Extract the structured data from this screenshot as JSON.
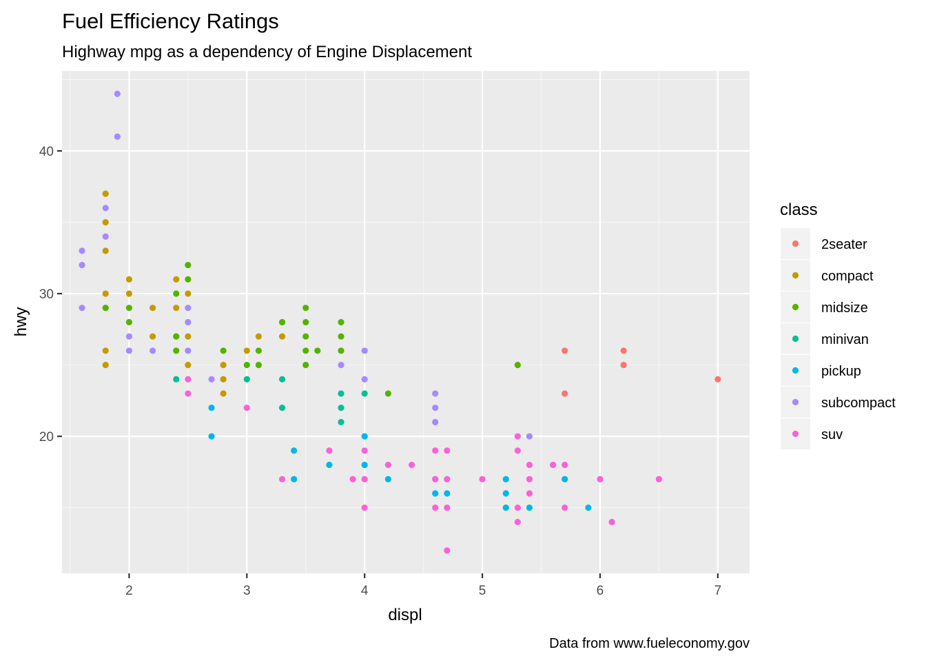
{
  "chart_data": {
    "type": "scatter",
    "title": "Fuel Efficiency Ratings",
    "subtitle": "Highway mpg as a dependency of Engine Displacement",
    "caption": "Data from www.fueleconomy.gov",
    "xlabel": "displ",
    "ylabel": "hwy",
    "xlim": [
      1.43,
      7.27
    ],
    "ylim": [
      10.4,
      45.6
    ],
    "xticks": [
      "2",
      "3",
      "4",
      "5",
      "6",
      "7"
    ],
    "yticks": [
      "20",
      "30",
      "40"
    ],
    "grid": true,
    "legend": {
      "title": "class",
      "position": "right",
      "entries": [
        "2seater",
        "compact",
        "midsize",
        "minivan",
        "pickup",
        "subcompact",
        "suv"
      ]
    },
    "colors": {
      "2seater": "#F8766D",
      "compact": "#C49A00",
      "midsize": "#53B400",
      "minivan": "#00C094",
      "pickup": "#00B6EB",
      "subcompact": "#A58AFF",
      "suv": "#FB61D7"
    },
    "series": [
      {
        "name": "2seater",
        "points": [
          [
            5.7,
            26
          ],
          [
            5.7,
            23
          ],
          [
            6.2,
            26
          ],
          [
            6.2,
            25
          ],
          [
            7.0,
            24
          ]
        ]
      },
      {
        "name": "compact",
        "points": [
          [
            1.8,
            37
          ],
          [
            1.8,
            35
          ],
          [
            1.8,
            33
          ],
          [
            1.8,
            30
          ],
          [
            1.8,
            29
          ],
          [
            1.8,
            26
          ],
          [
            1.8,
            25
          ],
          [
            2.0,
            31
          ],
          [
            2.0,
            30
          ],
          [
            2.2,
            29
          ],
          [
            2.2,
            27
          ],
          [
            2.4,
            31
          ],
          [
            2.4,
            29
          ],
          [
            2.4,
            27
          ],
          [
            2.5,
            30
          ],
          [
            2.5,
            27
          ],
          [
            2.5,
            25
          ],
          [
            2.8,
            25
          ],
          [
            2.8,
            24
          ],
          [
            2.8,
            23
          ],
          [
            3.0,
            26
          ],
          [
            3.1,
            27
          ],
          [
            3.3,
            27
          ],
          [
            3.3,
            28
          ]
        ]
      },
      {
        "name": "midsize",
        "points": [
          [
            1.8,
            29
          ],
          [
            2.0,
            29
          ],
          [
            2.0,
            28
          ],
          [
            2.4,
            30
          ],
          [
            2.4,
            27
          ],
          [
            2.4,
            26
          ],
          [
            2.5,
            32
          ],
          [
            2.5,
            31
          ],
          [
            2.8,
            26
          ],
          [
            3.0,
            25
          ],
          [
            3.1,
            26
          ],
          [
            3.1,
            25
          ],
          [
            3.3,
            28
          ],
          [
            3.5,
            29
          ],
          [
            3.5,
            28
          ],
          [
            3.5,
            27
          ],
          [
            3.5,
            26
          ],
          [
            3.5,
            25
          ],
          [
            3.6,
            26
          ],
          [
            3.8,
            28
          ],
          [
            3.8,
            27
          ],
          [
            3.8,
            26
          ],
          [
            4.2,
            23
          ],
          [
            5.3,
            25
          ]
        ]
      },
      {
        "name": "minivan",
        "points": [
          [
            2.4,
            24
          ],
          [
            3.0,
            24
          ],
          [
            3.3,
            24
          ],
          [
            3.3,
            22
          ],
          [
            3.8,
            23
          ],
          [
            3.8,
            22
          ],
          [
            3.8,
            21
          ],
          [
            4.0,
            23
          ]
        ]
      },
      {
        "name": "pickup",
        "points": [
          [
            2.7,
            22
          ],
          [
            2.7,
            20
          ],
          [
            3.4,
            19
          ],
          [
            3.4,
            17
          ],
          [
            3.7,
            18
          ],
          [
            4.0,
            20
          ],
          [
            4.0,
            18
          ],
          [
            4.2,
            17
          ],
          [
            4.6,
            17
          ],
          [
            4.6,
            16
          ],
          [
            4.7,
            16
          ],
          [
            5.2,
            17
          ],
          [
            5.2,
            16
          ],
          [
            5.2,
            15
          ],
          [
            5.4,
            15
          ],
          [
            5.7,
            17
          ],
          [
            5.9,
            15
          ]
        ]
      },
      {
        "name": "subcompact",
        "points": [
          [
            1.6,
            33
          ],
          [
            1.6,
            32
          ],
          [
            1.6,
            29
          ],
          [
            1.8,
            36
          ],
          [
            1.8,
            34
          ],
          [
            1.9,
            44
          ],
          [
            1.9,
            41
          ],
          [
            2.0,
            27
          ],
          [
            2.0,
            26
          ],
          [
            2.2,
            26
          ],
          [
            2.5,
            29
          ],
          [
            2.5,
            28
          ],
          [
            2.5,
            26
          ],
          [
            2.7,
            24
          ],
          [
            3.8,
            25
          ],
          [
            4.0,
            26
          ],
          [
            4.0,
            24
          ],
          [
            4.6,
            23
          ],
          [
            4.6,
            22
          ],
          [
            4.6,
            21
          ],
          [
            5.4,
            20
          ]
        ]
      },
      {
        "name": "suv",
        "points": [
          [
            2.5,
            24
          ],
          [
            2.5,
            23
          ],
          [
            3.0,
            22
          ],
          [
            3.3,
            17
          ],
          [
            3.7,
            19
          ],
          [
            3.9,
            17
          ],
          [
            4.0,
            19
          ],
          [
            4.0,
            17
          ],
          [
            4.0,
            15
          ],
          [
            4.2,
            18
          ],
          [
            4.4,
            18
          ],
          [
            4.6,
            19
          ],
          [
            4.6,
            17
          ],
          [
            4.6,
            15
          ],
          [
            4.7,
            19
          ],
          [
            4.7,
            17
          ],
          [
            4.7,
            15
          ],
          [
            4.7,
            12
          ],
          [
            5.0,
            17
          ],
          [
            5.3,
            20
          ],
          [
            5.3,
            19
          ],
          [
            5.3,
            15
          ],
          [
            5.3,
            14
          ],
          [
            5.4,
            18
          ],
          [
            5.4,
            17
          ],
          [
            5.4,
            16
          ],
          [
            5.6,
            18
          ],
          [
            5.7,
            18
          ],
          [
            5.7,
            15
          ],
          [
            6.0,
            17
          ],
          [
            6.1,
            14
          ],
          [
            6.5,
            17
          ]
        ]
      }
    ]
  }
}
